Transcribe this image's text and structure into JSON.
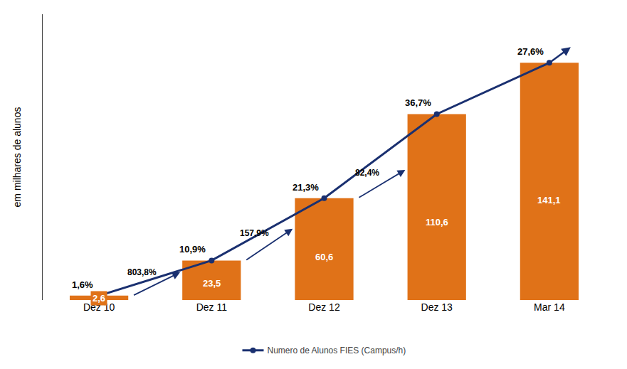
{
  "chart_data": {
    "type": "bar",
    "categories": [
      "Dez 10",
      "Dez 11",
      "Dez 12",
      "Dez 13",
      "Mar 14"
    ],
    "series": [
      {
        "type": "bar",
        "color": "#e07218",
        "values": [
          2.6,
          23.5,
          60.6,
          110.6,
          141.1
        ],
        "value_labels": [
          "2,6",
          "23,5",
          "60,6",
          "110,6",
          "141,1"
        ]
      },
      {
        "type": "line",
        "name": "Numero de Alunos FIES (Campus/h)",
        "color": "#1a3070",
        "marker": "circle",
        "values": [
          2.6,
          23.5,
          60.6,
          110.6,
          141.1
        ]
      }
    ],
    "ylabel": "em milhares de alunos",
    "ylim": [
      0,
      170
    ],
    "yticks": [],
    "tick_labels": "x",
    "grid": false,
    "legend": "bottom",
    "data_labels": true,
    "annotations": [
      {
        "text": "1,6%",
        "category": "Dez 10"
      },
      {
        "text": "10,9%",
        "category": "Dez 11"
      },
      {
        "text": "21,3%",
        "category": "Dez 12"
      },
      {
        "text": "36,7%",
        "category": "Dez 13"
      },
      {
        "text": "27,6%",
        "category": "Mar 14"
      },
      {
        "text": "803,8%",
        "from": "Dez 10",
        "to": "Dez 11"
      },
      {
        "text": "157,9%",
        "from": "Dez 11",
        "to": "Dez 12"
      },
      {
        "text": "82,4%",
        "from": "Dez 12",
        "to": "Dez 13"
      }
    ]
  }
}
